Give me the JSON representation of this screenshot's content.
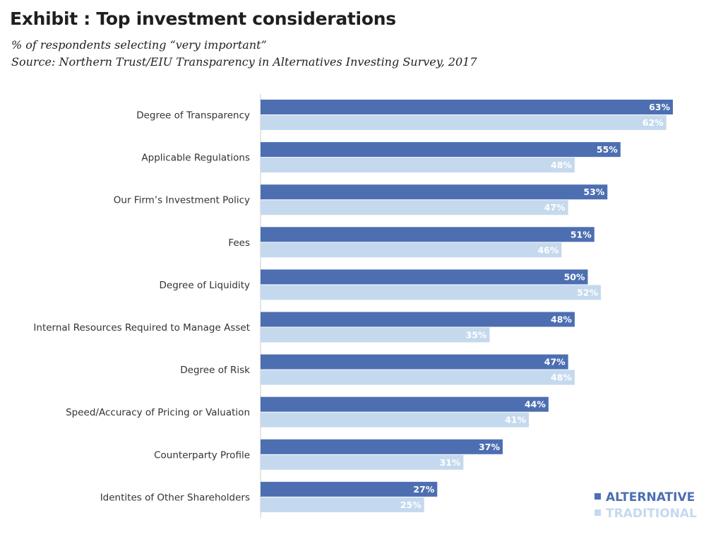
{
  "header": {
    "title": "Exhibit : Top investment considerations",
    "subtitle": "% of respondents selecting “very important”",
    "source": "Source: Northern Trust/EIU Transparency in Alternatives Investing Survey, 2017"
  },
  "colors": {
    "alternative": "#4d6fb2",
    "traditional": "#c5d9ee",
    "axis": "#cccccc"
  },
  "chart_data": {
    "type": "bar",
    "orientation": "horizontal",
    "categories": [
      "Degree of Transparency",
      "Applicable Regulations",
      "Our Firm’s Investment Policy",
      "Fees",
      "Degree of Liquidity",
      "Internal Resources Required to Manage Asset",
      "Degree of Risk",
      "Speed/Accuracy of Pricing or Valuation",
      "Counterparty Profile",
      "Identites of Other Shareholders"
    ],
    "series": [
      {
        "name": "ALTERNATIVE",
        "values": [
          63,
          55,
          53,
          51,
          50,
          48,
          47,
          44,
          37,
          27
        ]
      },
      {
        "name": "TRADITIONAL",
        "values": [
          62,
          48,
          47,
          46,
          52,
          35,
          48,
          41,
          31,
          25
        ]
      }
    ],
    "value_suffix": "%",
    "xlim": [
      0,
      63
    ],
    "grid": false,
    "legend": "bottom-right"
  }
}
